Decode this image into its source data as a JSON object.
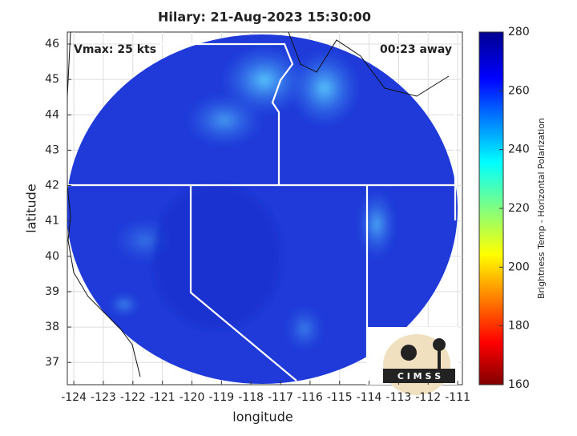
{
  "title": "Hilary: 21-Aug-2023 15:30:00",
  "annotations": {
    "vmax": "Vmax: 25 kts",
    "time_away": "00:23 away"
  },
  "x_axis": {
    "label": "longitude",
    "lim": [
      -124.22,
      -110.84
    ],
    "ticks": [
      -124,
      -123,
      -122,
      -121,
      -120,
      -119,
      -118,
      -117,
      -116,
      -115,
      -114,
      -113,
      -112,
      -111
    ]
  },
  "y_axis": {
    "label": "latitude",
    "lim": [
      36.37,
      46.34
    ],
    "ticks": [
      37,
      38,
      39,
      40,
      41,
      42,
      43,
      44,
      45,
      46
    ]
  },
  "colorbar": {
    "label": "Brightness Temp - Horizontal Polarization",
    "lim": [
      160,
      280
    ],
    "ticks": [
      160,
      180,
      200,
      220,
      240,
      260,
      280
    ]
  },
  "logo": {
    "text": "C I M S S"
  }
}
